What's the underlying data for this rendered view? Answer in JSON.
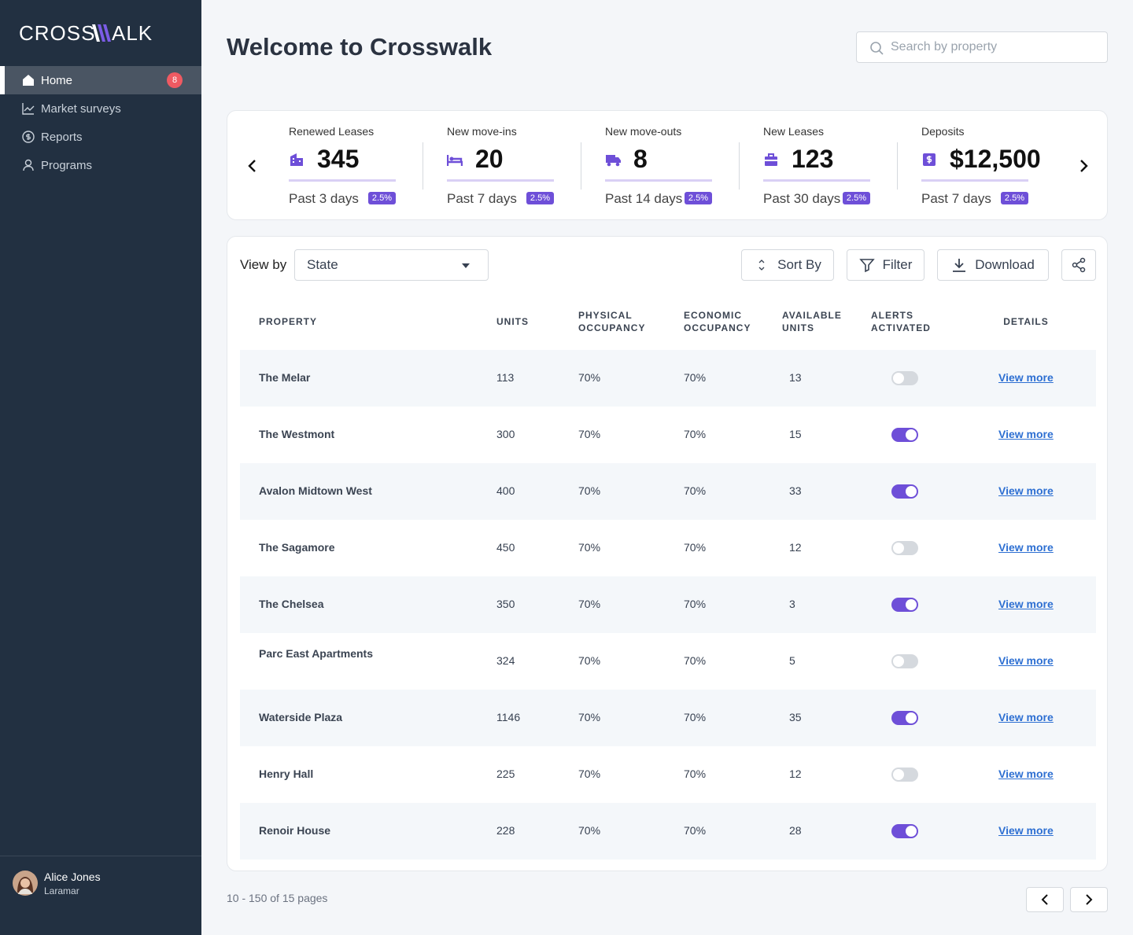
{
  "sidebar": {
    "logo": {
      "left": "CROSS",
      "right": "ALK"
    },
    "nav": [
      {
        "label": "Home",
        "badge": 8,
        "active": true
      },
      {
        "label": "Market surveys"
      },
      {
        "label": "Reports"
      },
      {
        "label": "Programs"
      }
    ],
    "user": {
      "name": "Alice Jones",
      "org": "Laramar"
    }
  },
  "header": {
    "title": "Welcome to Crosswalk",
    "search_placeholder": "Search by property"
  },
  "stats": [
    {
      "label": "Renewed Leases",
      "value": 345,
      "period": "Past 3 days",
      "change": "2.5%"
    },
    {
      "label": "New move-ins",
      "value": 20,
      "period": "Past 7 days",
      "change": "2.5%"
    },
    {
      "label": "New move-outs",
      "value": 8,
      "period": "Past 14 days",
      "change": "2.5%"
    },
    {
      "label": "New Leases",
      "value": 123,
      "period": "Past 30 days",
      "change": "2.5%"
    },
    {
      "label": "Deposits",
      "value": "$12,500",
      "period": "Past 7 days",
      "change": "2.5%"
    }
  ],
  "toolbar": {
    "view_by_label": "View by",
    "view_by_value": "State",
    "sort": "Sort By",
    "filter": "Filter",
    "download": "Download"
  },
  "table": {
    "columns": [
      "PROPERTY",
      "UNITS",
      "PHYSICAL OCCUPANCY",
      "ECONOMIC OCCUPANCY",
      "AVAILABLE UNITS",
      "ALERTS ACTIVATED",
      "DETAILS"
    ],
    "rows": [
      {
        "property": "The Melar",
        "units": 113,
        "physical_occupancy": "70%",
        "economic_occupancy": "70%",
        "available_units": 13,
        "alerts_activated": false,
        "details": "View more"
      },
      {
        "property": "The Westmont",
        "units": 300,
        "physical_occupancy": "70%",
        "economic_occupancy": "70%",
        "available_units": 15,
        "alerts_activated": true,
        "details": "View more"
      },
      {
        "property": "Avalon Midtown West",
        "units": 400,
        "physical_occupancy": "70%",
        "economic_occupancy": "70%",
        "available_units": 33,
        "alerts_activated": true,
        "details": "View more"
      },
      {
        "property": "The Sagamore",
        "units": 450,
        "physical_occupancy": "70%",
        "economic_occupancy": "70%",
        "available_units": 12,
        "alerts_activated": false,
        "details": "View more"
      },
      {
        "property": "The Chelsea",
        "units": 350,
        "physical_occupancy": "70%",
        "economic_occupancy": "70%",
        "available_units": 3,
        "alerts_activated": true,
        "details": "View more"
      },
      {
        "property": "Parc East Apartments",
        "units": 324,
        "physical_occupancy": "70%",
        "economic_occupancy": "70%",
        "available_units": 5,
        "alerts_activated": false,
        "details": "View more"
      },
      {
        "property": "Waterside Plaza",
        "units": 1146,
        "physical_occupancy": "70%",
        "economic_occupancy": "70%",
        "available_units": 35,
        "alerts_activated": true,
        "details": "View more"
      },
      {
        "property": "Henry Hall",
        "units": 225,
        "physical_occupancy": "70%",
        "economic_occupancy": "70%",
        "available_units": 12,
        "alerts_activated": false,
        "details": "View more"
      },
      {
        "property": "Renoir House",
        "units": 228,
        "physical_occupancy": "70%",
        "economic_occupancy": "70%",
        "available_units": 28,
        "alerts_activated": true,
        "details": "View more"
      }
    ]
  },
  "pagination": {
    "summary": "10 - 150 of 15 pages"
  }
}
